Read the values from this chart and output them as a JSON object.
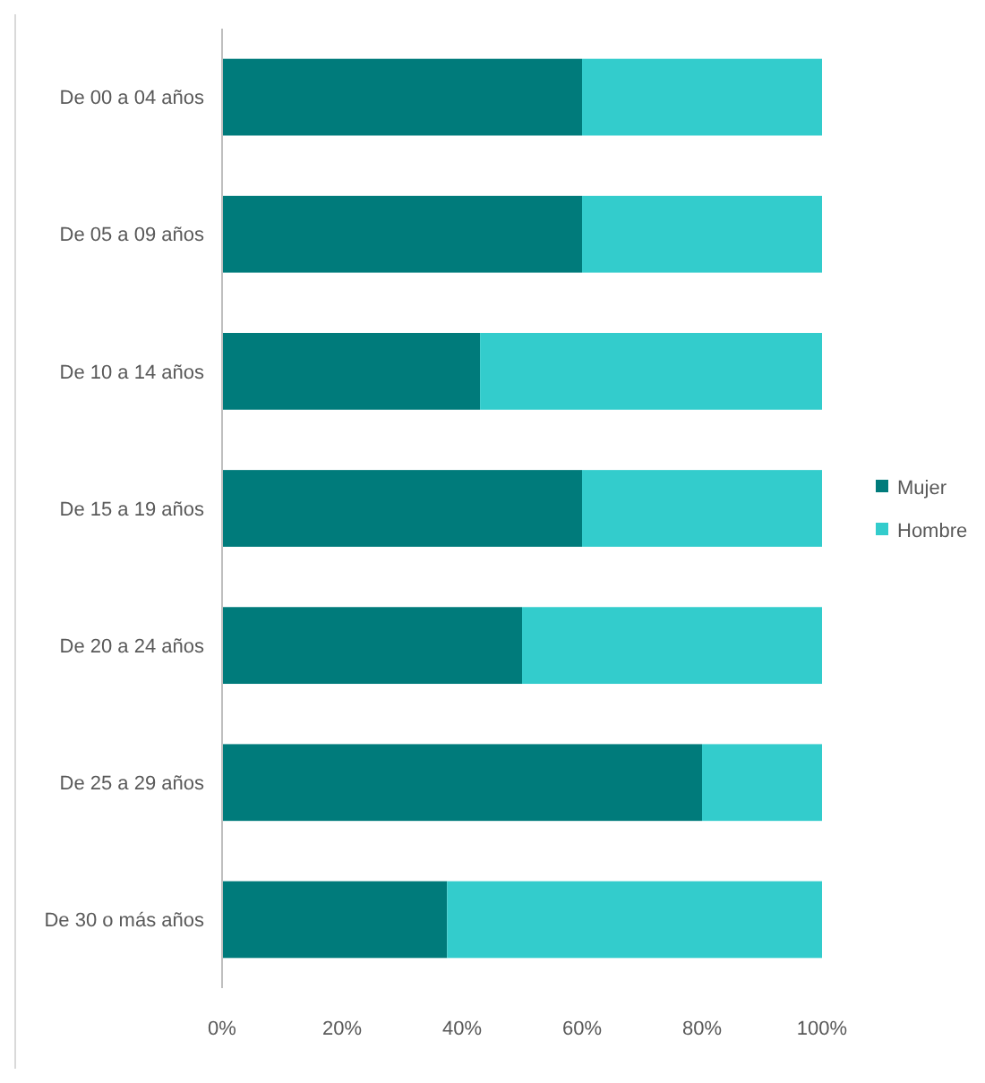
{
  "chart_data": {
    "type": "bar",
    "orientation": "horizontal",
    "stacked": true,
    "legend": "right",
    "grid": false,
    "categories": [
      "De 00 a 04 años",
      "De 05 a 09 años",
      "De 10 a 14 años",
      "De 15 a 19 años",
      "De 20 a 24 años",
      "De 25 a 29 años",
      "De 30 o más años"
    ],
    "series": [
      {
        "name": "Mujer",
        "color": "#007b7b",
        "values": [
          60,
          60,
          43,
          60,
          50,
          80,
          37.5
        ]
      },
      {
        "name": "Hombre",
        "color": "#33cccc",
        "values": [
          40,
          40,
          57,
          40,
          50,
          20,
          62.5
        ]
      }
    ],
    "xlim": [
      0,
      100
    ],
    "xticks": [
      {
        "value": 0,
        "label": "0%"
      },
      {
        "value": 20,
        "label": "20%"
      },
      {
        "value": 40,
        "label": "40%"
      },
      {
        "value": 60,
        "label": "60%"
      },
      {
        "value": 80,
        "label": "80%"
      },
      {
        "value": 100,
        "label": "100%"
      }
    ]
  }
}
